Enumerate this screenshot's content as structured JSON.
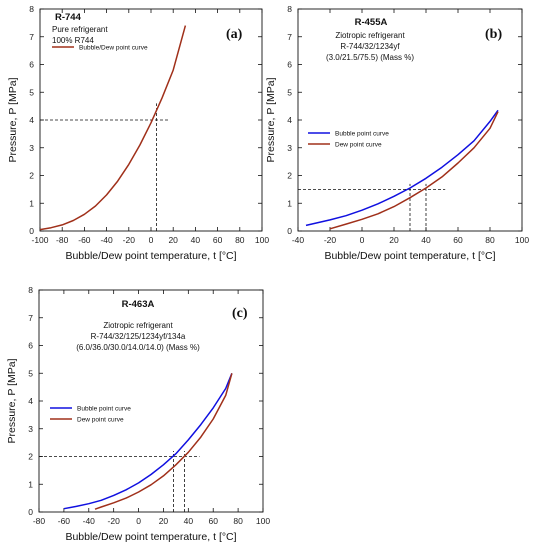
{
  "chart_data": [
    {
      "type": "line",
      "panel_label": "(a)",
      "title": "R-744",
      "notes": [
        "Pure refrigerant",
        "100% R744"
      ],
      "xlabel": "Bubble/Dew point temperature, t [°C]",
      "ylabel": "Pressure, P [MPa]",
      "xlim": [
        -100,
        100
      ],
      "ylim": [
        0,
        8
      ],
      "xticks": [
        "-100",
        "-80",
        "-60",
        "-40",
        "-20",
        "0",
        "20",
        "40",
        "60",
        "80",
        "100"
      ],
      "yticks": [
        "0",
        "1",
        "2",
        "3",
        "4",
        "5",
        "6",
        "7",
        "8"
      ],
      "legend_position": "top-left",
      "series": [
        {
          "name": "Bubble/Dew point curve",
          "color": "#a0301a",
          "x": [
            -100,
            -90,
            -80,
            -70,
            -60,
            -50,
            -40,
            -30,
            -20,
            -10,
            0,
            10,
            20,
            31
          ],
          "y": [
            0.05,
            0.12,
            0.22,
            0.38,
            0.6,
            0.9,
            1.3,
            1.8,
            2.4,
            3.1,
            3.9,
            4.8,
            5.8,
            7.4
          ]
        }
      ],
      "reference_lines": {
        "horizontal": [
          4.0
        ],
        "vertical": [
          5.0
        ]
      }
    },
    {
      "type": "line",
      "panel_label": "(b)",
      "title": "R-455A",
      "notes": [
        "Ziotropic refrigerant",
        "R-744/32/1234yf",
        "(3.0/21.5/75.5) (Mass %)"
      ],
      "xlabel": "Bubble/Dew point temperature, t [°C]",
      "ylabel": "Pressure, P [MPa]",
      "xlim": [
        -40,
        100
      ],
      "ylim": [
        0,
        8
      ],
      "xticks": [
        "-40",
        "-20",
        "0",
        "20",
        "40",
        "60",
        "80",
        "100"
      ],
      "yticks": [
        "0",
        "1",
        "2",
        "3",
        "4",
        "5",
        "6",
        "7",
        "8"
      ],
      "legend_position": "center-left",
      "series": [
        {
          "name": "Bubble point curve",
          "color": "#1010e0",
          "x": [
            -35,
            -20,
            -10,
            0,
            10,
            20,
            30,
            40,
            50,
            60,
            70,
            80,
            85
          ],
          "y": [
            0.2,
            0.4,
            0.55,
            0.75,
            0.98,
            1.25,
            1.55,
            1.9,
            2.3,
            2.75,
            3.25,
            3.95,
            4.35
          ]
        },
        {
          "name": "Dew point curve",
          "color": "#a0301a",
          "x": [
            -20,
            -10,
            0,
            10,
            20,
            30,
            40,
            50,
            60,
            70,
            80,
            85
          ],
          "y": [
            0.08,
            0.25,
            0.42,
            0.62,
            0.88,
            1.2,
            1.55,
            1.95,
            2.45,
            3.0,
            3.7,
            4.3
          ]
        }
      ],
      "reference_lines": {
        "horizontal": [
          1.5
        ],
        "vertical": [
          30,
          40
        ]
      }
    },
    {
      "type": "line",
      "panel_label": "(c)",
      "title": "R-463A",
      "notes": [
        "Ziotropic refrigerant",
        "R-744/32/125/1234yf/134a",
        "(6.0/36.0/30.0/14.0/14.0) (Mass %)"
      ],
      "xlabel": "Bubble/Dew point temperature, t [°C]",
      "ylabel": "Pressure, P [MPa]",
      "xlim": [
        -80,
        100
      ],
      "ylim": [
        0,
        8
      ],
      "xticks": [
        "-80",
        "-60",
        "-40",
        "-20",
        "0",
        "20",
        "40",
        "60",
        "80",
        "100"
      ],
      "yticks": [
        "0",
        "1",
        "2",
        "3",
        "4",
        "5",
        "6",
        "7",
        "8"
      ],
      "legend_position": "center-left",
      "series": [
        {
          "name": "Bubble point curve",
          "color": "#1010e0",
          "x": [
            -60,
            -50,
            -40,
            -30,
            -20,
            -10,
            0,
            10,
            20,
            30,
            40,
            50,
            60,
            70,
            75
          ],
          "y": [
            0.12,
            0.2,
            0.3,
            0.42,
            0.6,
            0.8,
            1.05,
            1.35,
            1.7,
            2.1,
            2.6,
            3.15,
            3.75,
            4.45,
            5.0
          ]
        },
        {
          "name": "Dew point curve",
          "color": "#a0301a",
          "x": [
            -35,
            -30,
            -20,
            -10,
            0,
            10,
            20,
            30,
            40,
            50,
            60,
            70,
            75
          ],
          "y": [
            0.1,
            0.18,
            0.33,
            0.5,
            0.72,
            0.98,
            1.3,
            1.7,
            2.15,
            2.7,
            3.35,
            4.2,
            5.0
          ]
        }
      ],
      "reference_lines": {
        "horizontal": [
          2.0
        ],
        "vertical": [
          28,
          37
        ]
      }
    }
  ]
}
